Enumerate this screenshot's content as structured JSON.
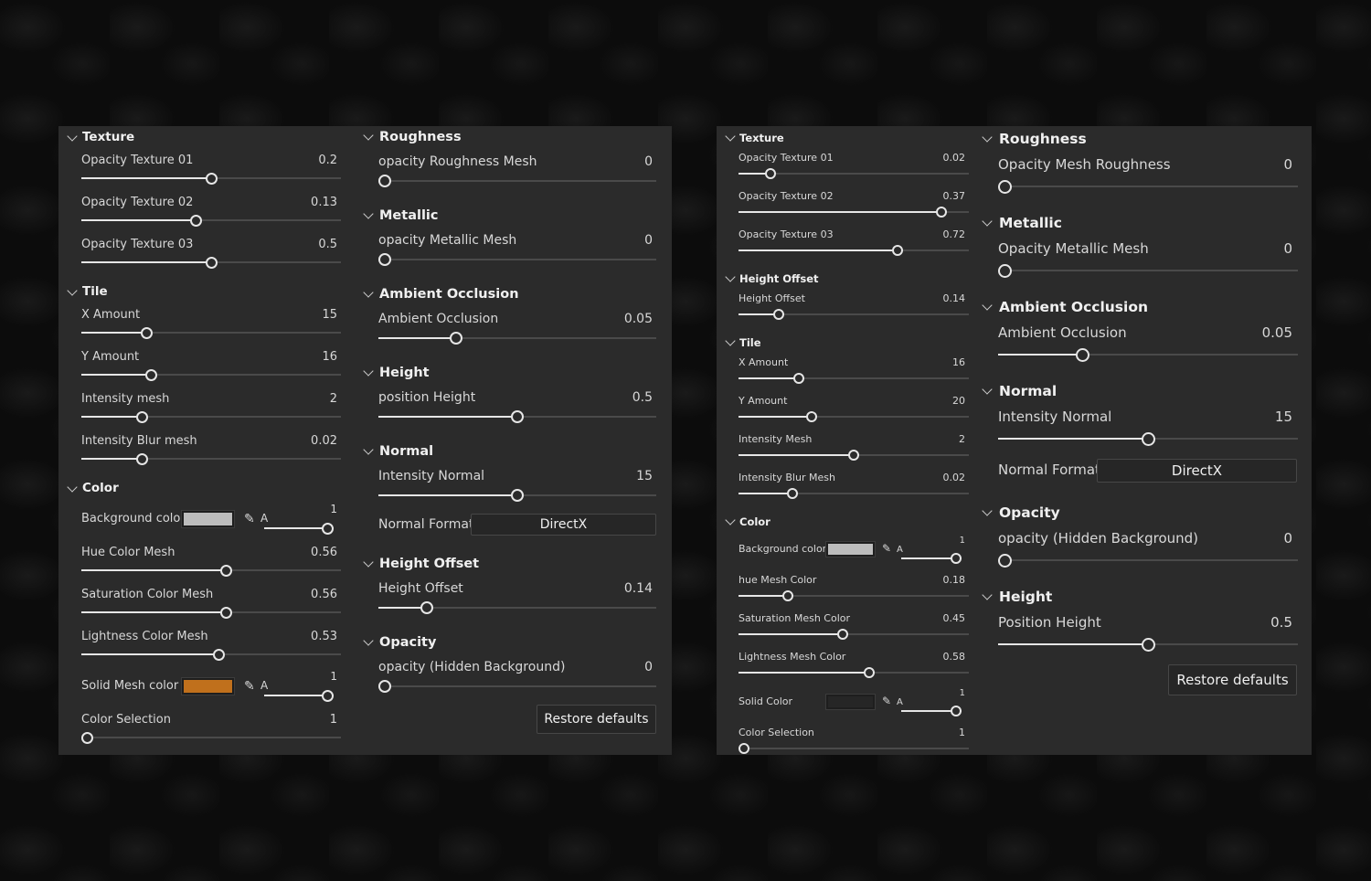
{
  "panels": [
    {
      "columns": [
        {
          "sections": [
            {
              "title": "Texture",
              "rows": [
                {
                  "type": "slider",
                  "label": "Opacity Texture 01",
                  "value": "0.2",
                  "position": 0.5
                },
                {
                  "type": "slider",
                  "label": "Opacity Texture 02",
                  "value": "0.13",
                  "position": 0.44
                },
                {
                  "type": "slider",
                  "label": "Opacity Texture 03",
                  "value": "0.5",
                  "position": 0.5
                }
              ]
            },
            {
              "title": "Tile",
              "rows": [
                {
                  "type": "slider",
                  "label": "X Amount",
                  "value": "15",
                  "position": 0.24
                },
                {
                  "type": "slider",
                  "label": "Y Amount",
                  "value": "16",
                  "position": 0.26
                },
                {
                  "type": "slider",
                  "label": "Intensity mesh",
                  "value": "2",
                  "position": 0.22
                },
                {
                  "type": "slider",
                  "label": "Intensity Blur mesh",
                  "value": "0.02",
                  "position": 0.22
                }
              ]
            },
            {
              "title": "Color",
              "color_section": true,
              "rows": [
                {
                  "type": "color",
                  "label": "Background color",
                  "color": "#bdbdbd",
                  "alpha_label": "A",
                  "value": "1",
                  "position": 1
                },
                {
                  "type": "slider",
                  "label": "Hue Color Mesh",
                  "value": "0.56",
                  "position": 0.56
                },
                {
                  "type": "slider",
                  "label": "Saturation Color Mesh",
                  "value": "0.56",
                  "position": 0.56
                },
                {
                  "type": "slider",
                  "label": "Lightness Color Mesh",
                  "value": "0.53",
                  "position": 0.53
                },
                {
                  "type": "color",
                  "label": "Solid Mesh color",
                  "color": "#c0701c",
                  "alpha_label": "A",
                  "value": "1",
                  "position": 1
                },
                {
                  "type": "slider",
                  "label": "Color Selection",
                  "value": "1",
                  "position": 0
                }
              ]
            }
          ]
        },
        {
          "sections": [
            {
              "title": "Roughness",
              "rows": [
                {
                  "type": "slider",
                  "label": "opacity Roughness Mesh",
                  "value": "0",
                  "position": 0
                }
              ]
            },
            {
              "title": "Metallic",
              "rows": [
                {
                  "type": "slider",
                  "label": "opacity Metallic Mesh",
                  "value": "0",
                  "position": 0
                }
              ]
            },
            {
              "title": "Ambient Occlusion",
              "rows": [
                {
                  "type": "slider",
                  "label": "Ambient Occlusion",
                  "value": "0.05",
                  "position": 0.27
                }
              ]
            },
            {
              "title": "Height",
              "rows": [
                {
                  "type": "slider",
                  "label": "position Height",
                  "value": "0.5",
                  "position": 0.5
                }
              ]
            },
            {
              "title": "Normal",
              "rows": [
                {
                  "type": "slider",
                  "label": "Intensity Normal",
                  "value": "15",
                  "position": 0.5
                },
                {
                  "type": "select",
                  "label": "Normal Format",
                  "value": "DirectX"
                }
              ]
            },
            {
              "title": "Height Offset",
              "rows": [
                {
                  "type": "slider",
                  "label": "Height Offset",
                  "value": "0.14",
                  "position": 0.16
                }
              ]
            },
            {
              "title": "Opacity",
              "rows": [
                {
                  "type": "slider",
                  "label": "opacity (Hidden Background)",
                  "value": "0",
                  "position": 0
                }
              ]
            }
          ],
          "button": "Restore defaults"
        }
      ]
    },
    {
      "columns": [
        {
          "sections": [
            {
              "title": "Texture",
              "rows": [
                {
                  "type": "slider",
                  "label": "Opacity Texture 01",
                  "value": "0.02",
                  "position": 0.12
                },
                {
                  "type": "slider",
                  "label": "Opacity Texture 02",
                  "value": "0.37",
                  "position": 0.9
                },
                {
                  "type": "slider",
                  "label": "Opacity Texture 03",
                  "value": "0.72",
                  "position": 0.7
                }
              ]
            },
            {
              "title": "Height Offset",
              "rows": [
                {
                  "type": "slider",
                  "label": "Height Offset",
                  "value": "0.14",
                  "position": 0.16
                }
              ]
            },
            {
              "title": "Tile",
              "rows": [
                {
                  "type": "slider",
                  "label": "X Amount",
                  "value": "16",
                  "position": 0.25
                },
                {
                  "type": "slider",
                  "label": "Y Amount",
                  "value": "20",
                  "position": 0.31
                },
                {
                  "type": "slider",
                  "label": "Intensity Mesh",
                  "value": "2",
                  "position": 0.5
                },
                {
                  "type": "slider",
                  "label": "Intensity Blur Mesh",
                  "value": "0.02",
                  "position": 0.22
                }
              ]
            },
            {
              "title": "Color",
              "color_section": true,
              "rows": [
                {
                  "type": "color",
                  "label": "Background color",
                  "color": "#bdbdbd",
                  "alpha_label": "A",
                  "value": "1",
                  "position": 1
                },
                {
                  "type": "slider",
                  "label": "hue Mesh Color",
                  "value": "0.18",
                  "position": 0.2
                },
                {
                  "type": "slider",
                  "label": "Saturation Mesh Color",
                  "value": "0.45",
                  "position": 0.45
                },
                {
                  "type": "slider",
                  "label": "Lightness Mesh Color",
                  "value": "0.58",
                  "position": 0.57
                },
                {
                  "type": "color",
                  "label": "Solid Color",
                  "color": "#262626",
                  "alpha_label": "A",
                  "value": "1",
                  "position": 1
                },
                {
                  "type": "slider",
                  "label": "Color Selection",
                  "value": "1",
                  "position": 0
                }
              ]
            }
          ]
        },
        {
          "sections": [
            {
              "title": "Roughness",
              "rows": [
                {
                  "type": "slider",
                  "label": "Opacity Mesh Roughness",
                  "value": "0",
                  "position": 0
                }
              ]
            },
            {
              "title": "Metallic",
              "rows": [
                {
                  "type": "slider",
                  "label": "Opacity Metallic Mesh",
                  "value": "0",
                  "position": 0
                }
              ]
            },
            {
              "title": "Ambient Occlusion",
              "rows": [
                {
                  "type": "slider",
                  "label": "Ambient Occlusion",
                  "value": "0.05",
                  "position": 0.27
                }
              ]
            },
            {
              "title": "Normal",
              "rows": [
                {
                  "type": "slider",
                  "label": "Intensity Normal",
                  "value": "15",
                  "position": 0.5
                },
                {
                  "type": "select",
                  "label": "Normal Format",
                  "value": "DirectX"
                }
              ]
            },
            {
              "title": "Opacity",
              "rows": [
                {
                  "type": "slider",
                  "label": "opacity (Hidden Background)",
                  "value": "0",
                  "position": 0
                }
              ]
            },
            {
              "title": "Height",
              "rows": [
                {
                  "type": "slider",
                  "label": "Position Height",
                  "value": "0.5",
                  "position": 0.5
                }
              ]
            }
          ],
          "button": "Restore defaults"
        }
      ]
    }
  ]
}
